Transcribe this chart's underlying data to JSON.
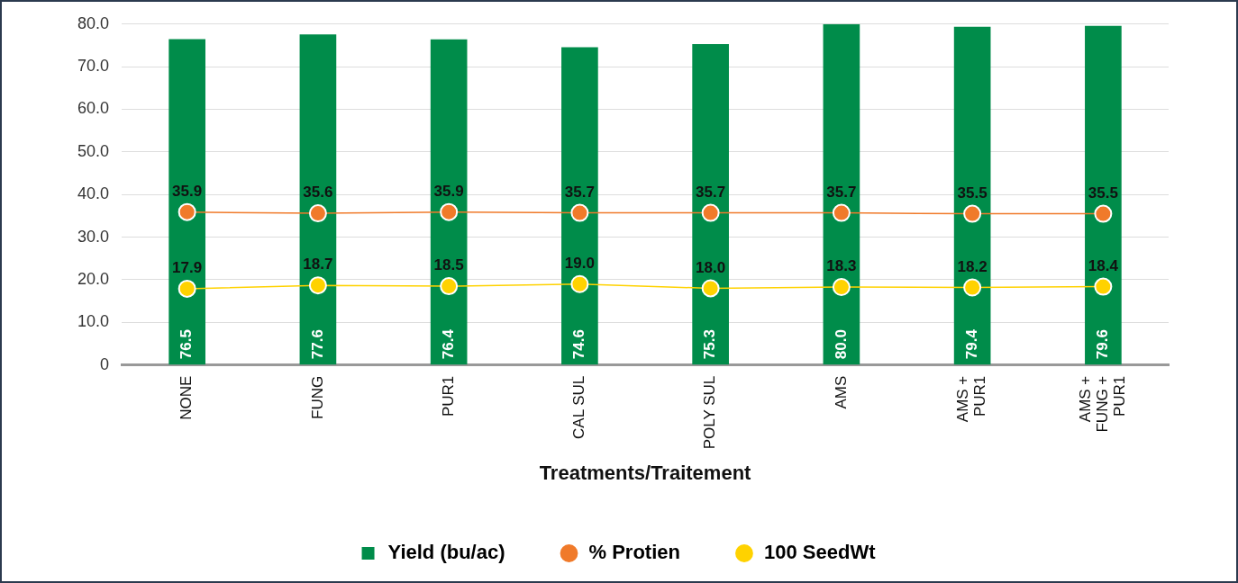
{
  "chart_data": {
    "type": "bar",
    "xlabel": "Treatments/Traitement",
    "categories": [
      "NONE",
      "FUNG",
      "PUR1",
      "CAL SUL",
      "POLY SUL",
      "AMS",
      "AMS +\nPUR1",
      "AMS +\nFUNG +\nPUR1"
    ],
    "series": [
      {
        "name": "Yield (bu/ac)",
        "color": "#008c4a",
        "values": [
          76.5,
          77.6,
          76.4,
          74.6,
          75.3,
          80.0,
          79.4,
          79.6
        ],
        "value_labels": [
          "76.5",
          "77.6",
          "76.4",
          "74.6",
          "75.3",
          "80.0",
          "79.4",
          "79.6"
        ]
      },
      {
        "name": "% Protien",
        "type": "line",
        "color": "#f07a2a",
        "values": [
          35.9,
          35.6,
          35.9,
          35.7,
          35.7,
          35.7,
          35.5,
          35.5
        ],
        "value_labels": [
          "35.9",
          "35.6",
          "35.9",
          "35.7",
          "35.7",
          "35.7",
          "35.5",
          "35.5"
        ]
      },
      {
        "name": "100 SeedWt",
        "type": "line",
        "color": "#ffd200",
        "values": [
          17.9,
          18.7,
          18.5,
          19.0,
          18.0,
          18.3,
          18.2,
          18.4
        ],
        "value_labels": [
          "17.9",
          "18.7",
          "18.5",
          "19.0",
          "18.0",
          "18.3",
          "18.2",
          "18.4"
        ]
      }
    ],
    "ylim": [
      0,
      80
    ],
    "yticks": [
      {
        "value": 0,
        "label": "0"
      },
      {
        "value": 10,
        "label": "10.0"
      },
      {
        "value": 20,
        "label": "20.0"
      },
      {
        "value": 30,
        "label": "30.0"
      },
      {
        "value": 40,
        "label": "40.0"
      },
      {
        "value": 50,
        "label": "50.0"
      },
      {
        "value": 60,
        "label": "60.0"
      },
      {
        "value": 70,
        "label": "70.0"
      },
      {
        "value": 80,
        "label": "80.0"
      }
    ],
    "grid": "y",
    "legend": "bottom",
    "marker": "circle",
    "line_style": "solid"
  }
}
